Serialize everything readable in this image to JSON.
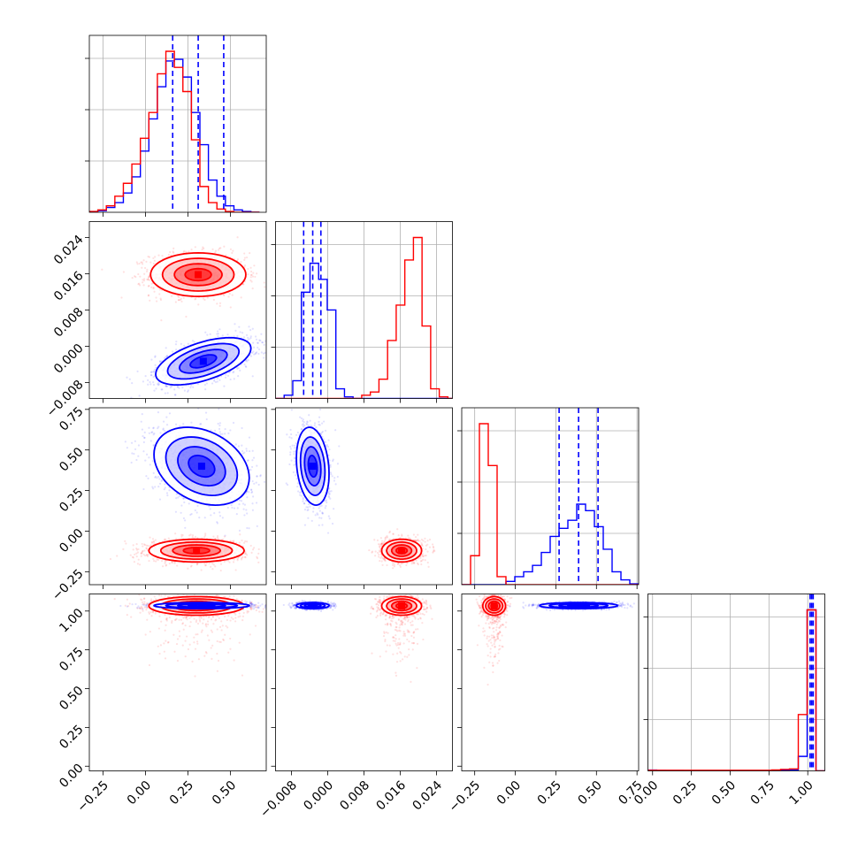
{
  "chart_data": {
    "type": "corner",
    "n_params": 4,
    "grid": true,
    "series": [
      {
        "color": "#ff0000",
        "cloud_alpha": 0.07
      },
      {
        "color": "#0000ff",
        "cloud_alpha": 0.07
      }
    ],
    "params": [
      {
        "range": [
          -0.33,
          0.71
        ],
        "ticks": [
          -0.25,
          0.0,
          0.25,
          0.5
        ],
        "tick_labels": [
          "−0.25",
          "0.00",
          "0.25",
          "0.50"
        ]
      },
      {
        "range": [
          -0.0115,
          0.0275
        ],
        "ticks": [
          -0.008,
          0.0,
          0.008,
          0.016,
          0.024
        ],
        "tick_labels": [
          "−0.008",
          "0.000",
          "0.008",
          "0.016",
          "0.024"
        ]
      },
      {
        "range": [
          -0.33,
          0.76
        ],
        "ticks": [
          -0.25,
          0.0,
          0.25,
          0.5,
          0.75
        ],
        "tick_labels": [
          "−0.25",
          "0.00",
          "0.25",
          "0.50",
          "0.75"
        ]
      },
      {
        "range": [
          -0.03,
          1.11
        ],
        "ticks": [
          0.0,
          0.25,
          0.5,
          0.75,
          1.0
        ],
        "tick_labels": [
          "0.00",
          "0.25",
          "0.50",
          "0.75",
          "1.00"
        ]
      }
    ],
    "histograms": [
      {
        "param": 0,
        "bin_start": -0.33,
        "bin_width": 0.05,
        "red": [
          0.005,
          0.015,
          0.04,
          0.1,
          0.18,
          0.3,
          0.46,
          0.62,
          0.86,
          1.0,
          0.9,
          0.75,
          0.45,
          0.16,
          0.06,
          0.02,
          0.005,
          0.0,
          0.0,
          0.0
        ],
        "blue": [
          0.0,
          0.01,
          0.03,
          0.06,
          0.12,
          0.22,
          0.38,
          0.58,
          0.78,
          0.94,
          0.95,
          0.84,
          0.62,
          0.42,
          0.2,
          0.1,
          0.04,
          0.015,
          0.005,
          0.0
        ],
        "quantiles": [
          0.16,
          0.31,
          0.46
        ],
        "quantile_color": "#0000ff"
      },
      {
        "param": 1,
        "bin_start": -0.0115,
        "bin_width": 0.0019,
        "red": [
          0,
          0,
          0,
          0,
          0,
          0,
          0,
          0,
          0,
          0,
          0.02,
          0.04,
          0.12,
          0.36,
          0.58,
          0.86,
          1.0,
          0.45,
          0.06,
          0.01,
          0
        ],
        "blue": [
          0,
          0.02,
          0.11,
          0.66,
          0.84,
          0.74,
          0.55,
          0.06,
          0.01,
          0,
          0,
          0,
          0,
          0,
          0,
          0,
          0,
          0,
          0,
          0,
          0
        ],
        "quantiles": [
          -0.0053,
          -0.0033,
          -0.0015
        ],
        "quantile_color": "#0000ff"
      },
      {
        "param": 2,
        "bin_start": -0.33,
        "bin_width": 0.0545,
        "red": [
          0.0,
          0.18,
          1.0,
          0.74,
          0.05,
          0.0,
          0,
          0,
          0,
          0,
          0,
          0,
          0,
          0,
          0,
          0,
          0,
          0,
          0,
          0
        ],
        "blue": [
          0,
          0,
          0,
          0,
          0,
          0.02,
          0.05,
          0.08,
          0.12,
          0.2,
          0.3,
          0.35,
          0.4,
          0.5,
          0.46,
          0.36,
          0.22,
          0.08,
          0.03,
          0.005
        ],
        "quantiles": [
          0.27,
          0.39,
          0.51
        ],
        "quantile_color": "#0000ff"
      },
      {
        "param": 3,
        "bin_start": -0.03,
        "bin_width": 0.057,
        "red": [
          0.004,
          0.004,
          0.004,
          0.004,
          0.004,
          0.004,
          0.004,
          0.004,
          0.004,
          0.004,
          0.004,
          0.004,
          0.004,
          0.004,
          0.006,
          0.009,
          0.012,
          0.35,
          1.0,
          0.0
        ],
        "blue": [
          0.005,
          0.003,
          0.002,
          0.002,
          0.001,
          0.001,
          0.001,
          0.001,
          0.001,
          0.001,
          0.001,
          0.001,
          0.001,
          0.001,
          0.001,
          0.002,
          0.006,
          0.09,
          1.0,
          0.0
        ],
        "quantiles": [
          1.015,
          1.025,
          1.035
        ],
        "quantile_color": "#0000ff"
      }
    ],
    "pairs": [
      {
        "x": 0,
        "y": 1,
        "red": {
          "mx": 0.31,
          "my": 0.0158,
          "sx": 0.14,
          "sy": 0.0024,
          "rho": 0.0
        },
        "blue": {
          "mx": 0.34,
          "my": -0.0033,
          "sx": 0.14,
          "sy": 0.0026,
          "rho": 0.55
        }
      },
      {
        "x": 0,
        "y": 2,
        "red": {
          "mx": 0.3,
          "my": -0.12,
          "sx": 0.14,
          "sy": 0.035,
          "rho": 0.0
        },
        "blue": {
          "mx": 0.33,
          "my": 0.4,
          "sx": 0.14,
          "sy": 0.12,
          "rho": -0.3
        }
      },
      {
        "x": 1,
        "y": 2,
        "red": {
          "mx": 0.0163,
          "my": -0.12,
          "sx": 0.0022,
          "sy": 0.035,
          "rho": 0.0
        },
        "blue": {
          "mx": -0.0033,
          "my": 0.4,
          "sx": 0.0018,
          "sy": 0.12,
          "rho": -0.2
        }
      },
      {
        "x": 0,
        "y": 3,
        "red": {
          "mx": 0.3,
          "my": 1.033,
          "sx": 0.14,
          "sy": 0.03,
          "rho": 0.0,
          "tail": true
        },
        "blue": {
          "mx": 0.33,
          "my": 1.035,
          "sx": 0.14,
          "sy": 0.01,
          "rho": 0.0
        }
      },
      {
        "x": 1,
        "y": 3,
        "red": {
          "mx": 0.0163,
          "my": 1.033,
          "sx": 0.0022,
          "sy": 0.03,
          "rho": 0.0,
          "tail": true
        },
        "blue": {
          "mx": -0.0033,
          "my": 1.035,
          "sx": 0.0018,
          "sy": 0.01,
          "rho": 0.0
        }
      },
      {
        "x": 2,
        "y": 3,
        "red": {
          "mx": -0.13,
          "my": 1.033,
          "sx": 0.035,
          "sy": 0.03,
          "rho": 0.0,
          "tail": true
        },
        "blue": {
          "mx": 0.39,
          "my": 1.035,
          "sx": 0.12,
          "sy": 0.01,
          "rho": 0.0
        }
      }
    ]
  }
}
